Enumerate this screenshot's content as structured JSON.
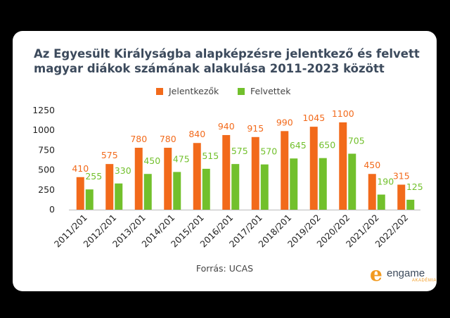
{
  "chart_data": {
    "type": "bar",
    "title": "Az Egyesült Királyságba alapképzésre jelentkező és felvett magyar diákok számának alakulása 2011-2023 között",
    "categories": [
      "2011/201",
      "2012/201",
      "2013/201",
      "2014/201",
      "2015/201",
      "2016/201",
      "2017/201",
      "2018/201",
      "2019/202",
      "2020/202",
      "2021/202",
      "2022/202"
    ],
    "series": [
      {
        "name": "Jelentkezők",
        "color": "#f26a1b",
        "values": [
          410,
          575,
          780,
          780,
          840,
          940,
          915,
          990,
          1045,
          1100,
          450,
          315
        ]
      },
      {
        "name": "Felvettek",
        "color": "#72c02c",
        "values": [
          255,
          330,
          450,
          475,
          515,
          575,
          570,
          645,
          650,
          705,
          190,
          125
        ]
      }
    ],
    "ylim": [
      0,
      1250
    ],
    "yticks": [
      0,
      250,
      500,
      750,
      1000,
      1250
    ],
    "xlabel": "",
    "ylabel": "",
    "legend_position": "top",
    "grid": false
  },
  "source_text": "Forrás: UCAS",
  "logo": {
    "mark": "e",
    "word": "engame",
    "sub": "AKADÉMIA"
  },
  "colors": {
    "background": "#000000",
    "card": "#ffffff",
    "title": "#3c4a5c"
  }
}
